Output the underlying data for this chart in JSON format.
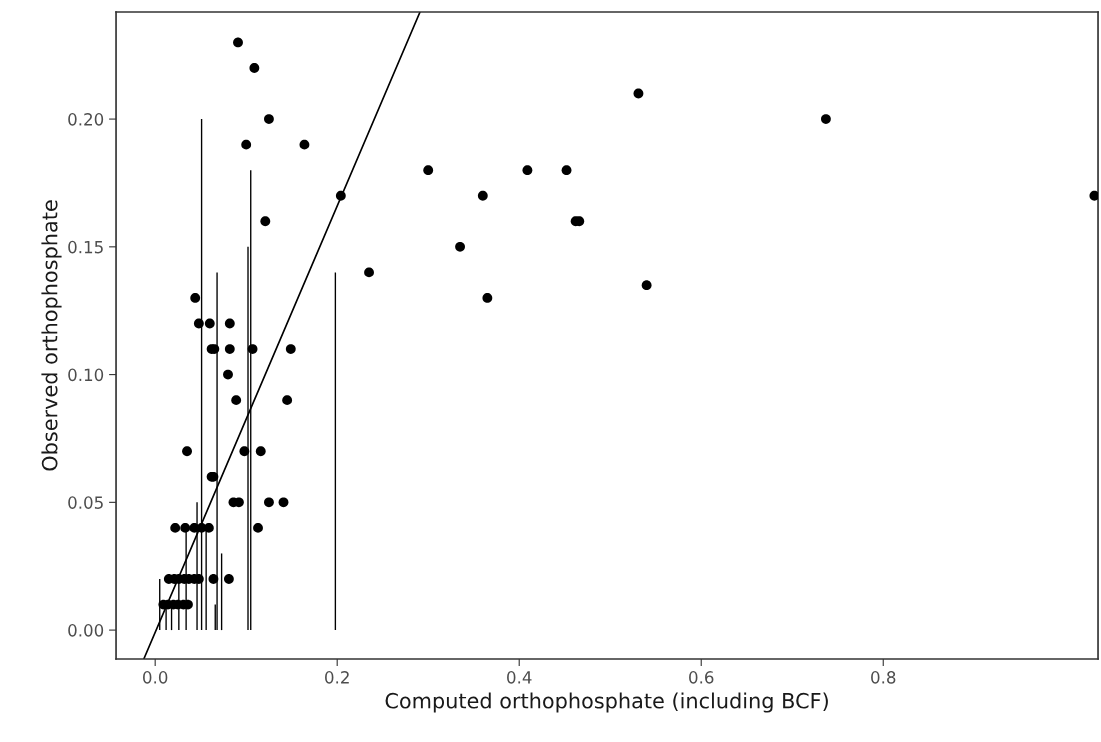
{
  "chart_data": {
    "type": "scatter",
    "xlabel": "Computed orthophosphate (including BCF)",
    "ylabel": "Observed orthophosphate",
    "xlim": [
      -0.043,
      1.036
    ],
    "ylim": [
      -0.0113,
      0.2419
    ],
    "xticks": [
      {
        "value": 0,
        "label": "0.0"
      },
      0.2,
      0.4,
      0.6,
      0.8
    ],
    "yticks": [
      {
        "value": 0,
        "label": "0.00"
      },
      0.05,
      {
        "value": 0.1,
        "label": "0.10"
      },
      0.15,
      {
        "value": 0.2,
        "label": "0.20"
      }
    ],
    "grid": false,
    "series": [
      {
        "color": "#000000",
        "marker": "circle",
        "x": [
          0.091,
          0.109,
          0.125,
          0.1,
          0.164,
          0.121,
          0.204,
          0.235,
          0.3,
          0.335,
          0.365,
          0.36,
          0.409,
          0.452,
          0.462,
          0.466,
          0.531,
          0.54,
          0.737,
          1.032,
          0.062,
          0.065,
          0.082,
          0.107,
          0.149,
          0.048,
          0.06,
          0.082,
          0.044,
          0.08,
          0.089,
          0.145,
          0.035,
          0.098,
          0.116,
          0.062,
          0.064,
          0.086,
          0.092,
          0.125,
          0.141,
          0.022,
          0.033,
          0.043,
          0.051,
          0.059,
          0.113,
          0.015,
          0.021,
          0.026,
          0.032,
          0.037,
          0.043,
          0.048,
          0.064,
          0.081,
          0.009,
          0.014,
          0.02,
          0.025,
          0.031,
          0.036
        ],
        "values": [
          0.23,
          0.22,
          0.2,
          0.19,
          0.19,
          0.16,
          0.17,
          0.14,
          0.18,
          0.15,
          0.13,
          0.17,
          0.18,
          0.18,
          0.16,
          0.16,
          0.21,
          0.135,
          0.2,
          0.17,
          0.11,
          0.11,
          0.11,
          0.11,
          0.11,
          0.12,
          0.12,
          0.12,
          0.13,
          0.1,
          0.09,
          0.09,
          0.07,
          0.07,
          0.07,
          0.06,
          0.06,
          0.05,
          0.05,
          0.05,
          0.05,
          0.04,
          0.04,
          0.04,
          0.04,
          0.04,
          0.04,
          0.02,
          0.02,
          0.02,
          0.02,
          0.02,
          0.02,
          0.02,
          0.02,
          0.02,
          0.01,
          0.01,
          0.01,
          0.01,
          0.01,
          0.01
        ]
      },
      {
        "type": "bar",
        "color": "#000000",
        "x": [
          0.005,
          0.012,
          0.018,
          0.026,
          0.034,
          0.046,
          0.051,
          0.056,
          0.066,
          0.068,
          0.073,
          0.102,
          0.105,
          0.198
        ],
        "values": [
          0.02,
          0.01,
          0.01,
          0.02,
          0.04,
          0.05,
          0.2,
          0.04,
          0.01,
          0.14,
          0.03,
          0.15,
          0.18,
          0.14
        ]
      },
      {
        "type": "line",
        "color": "#000000",
        "line_style": "solid",
        "x": [
          -0.0125,
          0.291
        ],
        "values": [
          -0.0113,
          0.2419
        ]
      }
    ]
  }
}
